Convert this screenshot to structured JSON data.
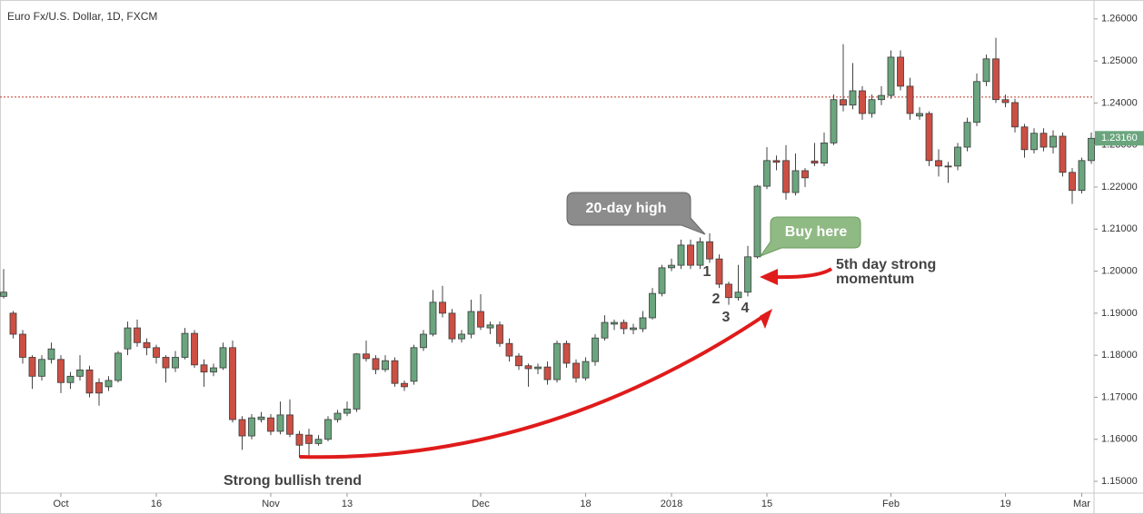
{
  "chart_data": {
    "type": "candlestick",
    "title": "Euro Fx/U.S. Dollar, 1D, FXCM",
    "categories": [
      null,
      null,
      null,
      null,
      null,
      null,
      "Oct",
      null,
      null,
      null,
      null,
      null,
      null,
      null,
      null,
      null,
      "16",
      null,
      null,
      null,
      null,
      null,
      null,
      null,
      null,
      null,
      null,
      null,
      "Nov",
      null,
      null,
      null,
      null,
      null,
      null,
      null,
      "13",
      null,
      null,
      null,
      null,
      null,
      null,
      null,
      null,
      null,
      null,
      null,
      null,
      null,
      "Dec",
      null,
      null,
      null,
      null,
      null,
      null,
      null,
      null,
      null,
      null,
      "18",
      null,
      null,
      null,
      null,
      null,
      null,
      null,
      null,
      "2018",
      null,
      null,
      null,
      null,
      null,
      null,
      null,
      null,
      null,
      "15",
      null,
      null,
      null,
      null,
      null,
      null,
      null,
      null,
      null,
      null,
      null,
      null,
      "Feb",
      null,
      null,
      null,
      null,
      null,
      null,
      null,
      null,
      null,
      null,
      null,
      "19",
      null,
      null,
      null,
      null,
      null,
      null,
      null,
      "Mar",
      null
    ],
    "open": [
      1.194,
      1.19,
      1.185,
      1.1795,
      1.175,
      1.179,
      1.179,
      1.1735,
      1.175,
      1.1765,
      1.1735,
      1.1725,
      1.174,
      1.1815,
      1.1865,
      1.183,
      1.1818,
      1.1795,
      1.177,
      1.1795,
      1.1852,
      1.1777,
      1.176,
      1.177,
      1.1818,
      1.1647,
      1.1608,
      1.1647,
      1.1651,
      1.1619,
      1.1658,
      1.1612,
      1.161,
      1.159,
      1.16,
      1.1647,
      1.1662,
      1.1672,
      1.1803,
      1.1792,
      1.1766,
      1.1787,
      1.1733,
      1.1738,
      1.1818,
      1.185,
      1.1926,
      1.19,
      1.1839,
      1.185,
      1.1904,
      1.1865,
      1.1872,
      1.1828,
      1.1798,
      1.1775,
      1.1768,
      1.1772,
      1.1742,
      1.1828,
      1.1781,
      1.1746,
      1.1785,
      1.1841,
      1.1874,
      1.1878,
      1.1861,
      1.1863,
      1.1889,
      1.1947,
      1.2008,
      1.2014,
      1.2062,
      1.2014,
      1.207,
      1.2029,
      1.1969,
      1.1937,
      1.195,
      1.2034,
      1.2202,
      1.2263,
      1.2263,
      1.2187,
      1.2239,
      1.2262,
      1.2257,
      1.2305,
      1.2408,
      1.2395,
      1.2429,
      1.2375,
      1.2408,
      1.2418,
      1.2509,
      1.244,
      1.2369,
      1.2375,
      1.2263,
      1.225,
      1.225,
      1.2295,
      1.2354,
      1.2451,
      1.2505,
      1.2408,
      1.2401,
      1.2343,
      1.2289,
      1.2328,
      1.2295,
      1.2321,
      1.2235,
      1.2192,
      1.2263
    ],
    "high": [
      1.2005,
      1.1905,
      1.186,
      1.18,
      1.18,
      1.183,
      1.18,
      1.176,
      1.18,
      1.1775,
      1.1745,
      1.175,
      1.181,
      1.188,
      1.1885,
      1.184,
      1.1825,
      1.18,
      1.181,
      1.1865,
      1.186,
      1.179,
      1.178,
      1.183,
      1.1835,
      1.1655,
      1.166,
      1.1665,
      1.166,
      1.169,
      1.1695,
      1.162,
      1.1625,
      1.161,
      1.1655,
      1.167,
      1.169,
      1.1805,
      1.1835,
      1.18,
      1.18,
      1.1795,
      1.174,
      1.1825,
      1.186,
      1.1955,
      1.1965,
      1.191,
      1.186,
      1.1932,
      1.1945,
      1.188,
      1.188,
      1.184,
      1.1805,
      1.178,
      1.178,
      1.1785,
      1.1835,
      1.1835,
      1.179,
      1.1795,
      1.185,
      1.1895,
      1.1885,
      1.1885,
      1.1875,
      1.1905,
      1.196,
      1.2015,
      1.203,
      1.2075,
      1.2075,
      1.208,
      1.209,
      1.204,
      1.1975,
      1.2015,
      1.206,
      1.2205,
      1.2295,
      1.2275,
      1.23,
      1.228,
      1.2245,
      1.2305,
      1.233,
      1.242,
      1.254,
      1.2495,
      1.244,
      1.242,
      1.244,
      1.2525,
      1.2525,
      1.246,
      1.239,
      1.238,
      1.229,
      1.226,
      1.2305,
      1.2365,
      1.247,
      1.2515,
      1.2555,
      1.242,
      1.241,
      1.235,
      1.234,
      1.234,
      1.2335,
      1.233,
      1.2245,
      1.227,
      1.233
    ],
    "low": [
      1.1935,
      1.184,
      1.178,
      1.172,
      1.174,
      1.178,
      1.171,
      1.172,
      1.174,
      1.17,
      1.168,
      1.1715,
      1.1735,
      1.18,
      1.182,
      1.18,
      1.178,
      1.1735,
      1.176,
      1.179,
      1.177,
      1.1725,
      1.175,
      1.1765,
      1.164,
      1.1575,
      1.16,
      1.164,
      1.161,
      1.1612,
      1.1605,
      1.1556,
      1.1555,
      1.1585,
      1.1595,
      1.164,
      1.1655,
      1.1665,
      1.1785,
      1.1755,
      1.176,
      1.1725,
      1.1715,
      1.173,
      1.181,
      1.1845,
      1.189,
      1.183,
      1.183,
      1.184,
      1.186,
      1.185,
      1.182,
      1.1785,
      1.1765,
      1.1725,
      1.1755,
      1.173,
      1.1735,
      1.177,
      1.1735,
      1.174,
      1.1775,
      1.1835,
      1.186,
      1.185,
      1.185,
      1.1855,
      1.1885,
      1.194,
      1.2,
      1.2005,
      1.2005,
      1.2005,
      1.202,
      1.196,
      1.192,
      1.193,
      1.194,
      1.203,
      1.2195,
      1.224,
      1.217,
      1.218,
      1.22,
      1.225,
      1.225,
      1.23,
      1.238,
      1.2385,
      1.236,
      1.2365,
      1.2395,
      1.241,
      1.243,
      1.236,
      1.236,
      1.225,
      1.2225,
      1.221,
      1.224,
      1.2285,
      1.2345,
      1.244,
      1.24,
      1.239,
      1.233,
      1.227,
      1.228,
      1.2285,
      1.228,
      1.2225,
      1.216,
      1.2185,
      1.2255
    ],
    "close": [
      1.195,
      1.185,
      1.1795,
      1.175,
      1.179,
      1.1815,
      1.1735,
      1.175,
      1.1765,
      1.171,
      1.171,
      1.174,
      1.1805,
      1.1865,
      1.183,
      1.1818,
      1.1795,
      1.177,
      1.1795,
      1.1852,
      1.1777,
      1.176,
      1.177,
      1.1818,
      1.1647,
      1.1608,
      1.1651,
      1.1653,
      1.1619,
      1.1658,
      1.1612,
      1.1586,
      1.159,
      1.16,
      1.1647,
      1.1662,
      1.1672,
      1.1803,
      1.1792,
      1.1766,
      1.1787,
      1.1733,
      1.1725,
      1.1818,
      1.185,
      1.1926,
      1.19,
      1.1839,
      1.185,
      1.1904,
      1.1867,
      1.1872,
      1.1828,
      1.1798,
      1.1775,
      1.1768,
      1.1772,
      1.1742,
      1.1828,
      1.1781,
      1.1746,
      1.1785,
      1.1841,
      1.1878,
      1.1878,
      1.1863,
      1.1865,
      1.1889,
      1.1947,
      1.2008,
      1.2014,
      1.2062,
      1.2014,
      1.207,
      1.2029,
      1.1969,
      1.1937,
      1.195,
      1.2034,
      1.2202,
      1.2263,
      1.2259,
      1.2187,
      1.2239,
      1.2222,
      1.2257,
      1.2305,
      1.2408,
      1.2395,
      1.2429,
      1.2375,
      1.2408,
      1.2418,
      1.2509,
      1.244,
      1.2375,
      1.2375,
      1.2263,
      1.225,
      1.2248,
      1.2295,
      1.2354,
      1.2451,
      1.2505,
      1.2408,
      1.2401,
      1.2343,
      1.2289,
      1.2328,
      1.2295,
      1.2321,
      1.2235,
      1.2192,
      1.2263,
      1.2316
    ],
    "up_color": "#6aa57e",
    "down_color": "#cc4f44",
    "ylim": [
      1.1472,
      1.2645
    ],
    "yticks": [
      {
        "value": 1.15,
        "label": "1.15000"
      },
      {
        "value": 1.16,
        "label": "1.16000"
      },
      {
        "value": 1.17,
        "label": "1.17000"
      },
      {
        "value": 1.18,
        "label": "1.18000"
      },
      {
        "value": 1.19,
        "label": "1.19000"
      },
      {
        "value": 1.2,
        "label": "1.20000"
      },
      {
        "value": 1.21,
        "label": "1.21000"
      },
      {
        "value": 1.22,
        "label": "1.22000"
      },
      {
        "value": 1.23,
        "label": "1.23000"
      },
      {
        "value": 1.24,
        "label": "1.24000"
      },
      {
        "value": 1.25,
        "label": "1.25000"
      },
      {
        "value": 1.26,
        "label": "1.26000"
      }
    ],
    "last_price": {
      "value": 1.2316,
      "label": "1.23160"
    },
    "hline": 1.2414,
    "hline_color": "#c0392b",
    "annotations": {
      "high_callout": "20-day high",
      "buy_callout": "Buy here",
      "momentum": [
        "5th day strong",
        "momentum"
      ],
      "trend": "Strong bullish trend",
      "counts": [
        "1",
        "2",
        "3",
        "4"
      ]
    }
  }
}
